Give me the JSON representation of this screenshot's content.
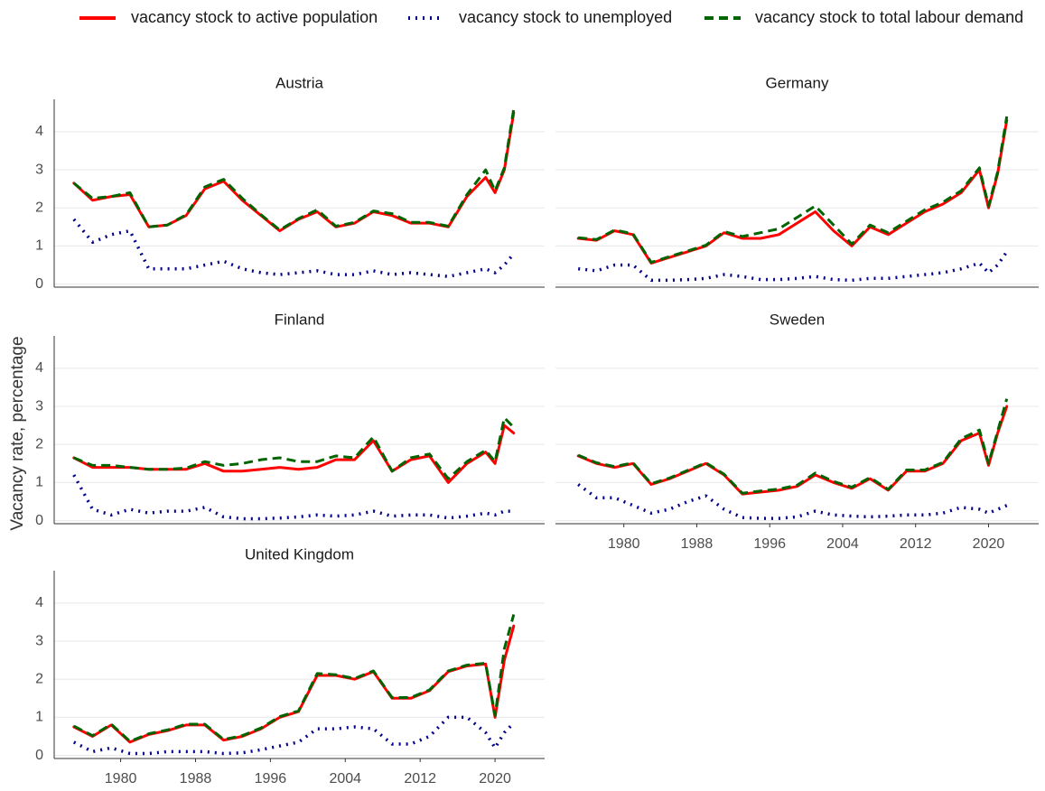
{
  "ylabel": "Vacancy rate, percentage",
  "chart_data": [
    {
      "type": "line",
      "title": "Austria",
      "col": 0,
      "row": 0,
      "y_axis": true,
      "x": [
        1975,
        1977,
        1979,
        1981,
        1983,
        1985,
        1987,
        1989,
        1991,
        1993,
        1995,
        1997,
        1999,
        2001,
        2003,
        2005,
        2007,
        2009,
        2011,
        2013,
        2015,
        2017,
        2019,
        2020,
        2021,
        2022
      ],
      "xlim": [
        1972.9,
        2025.3
      ],
      "ylim": [
        -0.08,
        4.85
      ],
      "yticks": [
        0,
        1,
        2,
        3,
        4
      ],
      "grid": true,
      "series": [
        {
          "name": "vacancy stock to active population",
          "color": "#ff0000",
          "dash": "solid",
          "values": [
            2.65,
            2.2,
            2.3,
            2.35,
            1.5,
            1.55,
            1.8,
            2.5,
            2.7,
            2.2,
            1.8,
            1.4,
            1.7,
            1.9,
            1.5,
            1.6,
            1.9,
            1.8,
            1.6,
            1.6,
            1.5,
            2.3,
            2.8,
            2.4,
            3.0,
            4.5
          ]
        },
        {
          "name": "vacancy stock to unemployed",
          "color": "#00008b",
          "dash": "dotted",
          "values": [
            1.7,
            1.1,
            1.3,
            1.4,
            0.4,
            0.4,
            0.4,
            0.5,
            0.6,
            0.4,
            0.3,
            0.25,
            0.3,
            0.35,
            0.25,
            0.25,
            0.35,
            0.25,
            0.3,
            0.25,
            0.2,
            0.3,
            0.4,
            0.3,
            0.5,
            0.8
          ]
        },
        {
          "name": "vacancy stock to total labour demand",
          "color": "#006400",
          "dash": "dashed",
          "values": [
            2.65,
            2.25,
            2.3,
            2.4,
            1.5,
            1.55,
            1.82,
            2.55,
            2.75,
            2.25,
            1.82,
            1.42,
            1.72,
            1.95,
            1.52,
            1.62,
            1.92,
            1.85,
            1.62,
            1.62,
            1.52,
            2.35,
            3.0,
            2.45,
            3.05,
            4.6
          ]
        }
      ]
    },
    {
      "type": "line",
      "title": "Germany",
      "col": 1,
      "row": 0,
      "y_axis": false,
      "x": [
        1975,
        1977,
        1979,
        1981,
        1983,
        1985,
        1987,
        1989,
        1991,
        1993,
        1995,
        1997,
        1999,
        2001,
        2003,
        2005,
        2007,
        2009,
        2011,
        2013,
        2015,
        2017,
        2019,
        2020,
        2021,
        2022
      ],
      "xlim": [
        1972.5,
        2025.5
      ],
      "ylim": [
        -0.08,
        4.85
      ],
      "yticks": [
        0,
        1,
        2,
        3,
        4
      ],
      "grid": true,
      "series": [
        {
          "color": "#ff0000",
          "dash": "solid",
          "values": [
            1.2,
            1.15,
            1.4,
            1.3,
            0.55,
            0.7,
            0.85,
            1.0,
            1.35,
            1.2,
            1.2,
            1.3,
            1.6,
            1.9,
            1.4,
            1.0,
            1.5,
            1.3,
            1.6,
            1.9,
            2.1,
            2.4,
            3.0,
            2.0,
            2.9,
            4.3
          ]
        },
        {
          "color": "#00008b",
          "dash": "dotted",
          "values": [
            0.4,
            0.35,
            0.5,
            0.5,
            0.1,
            0.1,
            0.12,
            0.15,
            0.25,
            0.2,
            0.12,
            0.12,
            0.15,
            0.2,
            0.12,
            0.1,
            0.15,
            0.15,
            0.2,
            0.25,
            0.3,
            0.4,
            0.55,
            0.3,
            0.5,
            0.85
          ]
        },
        {
          "color": "#006400",
          "dash": "dashed",
          "values": [
            1.22,
            1.17,
            1.42,
            1.32,
            0.57,
            0.72,
            0.87,
            1.02,
            1.38,
            1.25,
            1.35,
            1.45,
            1.75,
            2.05,
            1.55,
            1.05,
            1.55,
            1.35,
            1.65,
            1.95,
            2.15,
            2.45,
            3.05,
            2.05,
            2.95,
            4.4
          ]
        }
      ]
    },
    {
      "type": "line",
      "title": "Finland",
      "col": 0,
      "row": 1,
      "y_axis": true,
      "x": [
        1975,
        1977,
        1979,
        1981,
        1983,
        1985,
        1987,
        1989,
        1991,
        1993,
        1995,
        1997,
        1999,
        2001,
        2003,
        2005,
        2007,
        2009,
        2011,
        2013,
        2015,
        2017,
        2019,
        2020,
        2021,
        2022
      ],
      "xlim": [
        1972.9,
        2025.3
      ],
      "ylim": [
        -0.08,
        4.85
      ],
      "yticks": [
        0,
        1,
        2,
        3,
        4
      ],
      "grid": true,
      "series": [
        {
          "color": "#ff0000",
          "dash": "solid",
          "values": [
            1.65,
            1.4,
            1.4,
            1.4,
            1.35,
            1.35,
            1.35,
            1.5,
            1.3,
            1.3,
            1.35,
            1.4,
            1.35,
            1.4,
            1.6,
            1.6,
            2.1,
            1.3,
            1.6,
            1.7,
            1.0,
            1.5,
            1.8,
            1.5,
            2.5,
            2.3
          ]
        },
        {
          "color": "#00008b",
          "dash": "dotted",
          "values": [
            1.2,
            0.3,
            0.15,
            0.3,
            0.2,
            0.25,
            0.25,
            0.35,
            0.1,
            0.05,
            0.05,
            0.07,
            0.1,
            0.15,
            0.12,
            0.15,
            0.25,
            0.12,
            0.15,
            0.15,
            0.07,
            0.12,
            0.2,
            0.15,
            0.25,
            0.25
          ]
        },
        {
          "color": "#006400",
          "dash": "dashed",
          "values": [
            1.65,
            1.45,
            1.45,
            1.4,
            1.35,
            1.35,
            1.38,
            1.55,
            1.45,
            1.5,
            1.6,
            1.65,
            1.55,
            1.55,
            1.7,
            1.65,
            2.2,
            1.3,
            1.65,
            1.75,
            1.1,
            1.55,
            1.85,
            1.55,
            2.7,
            2.45
          ]
        }
      ]
    },
    {
      "type": "line",
      "title": "Sweden",
      "col": 1,
      "row": 1,
      "y_axis": false,
      "x": [
        1975,
        1977,
        1979,
        1981,
        1983,
        1985,
        1987,
        1989,
        1991,
        1993,
        1995,
        1997,
        1999,
        2001,
        2003,
        2005,
        2007,
        2009,
        2011,
        2013,
        2015,
        2017,
        2019,
        2020,
        2021,
        2022
      ],
      "xlim": [
        1972.5,
        2025.5
      ],
      "ylim": [
        -0.08,
        4.85
      ],
      "yticks": [
        0,
        1,
        2,
        3,
        4
      ],
      "xticks": [
        1980,
        1988,
        1996,
        2004,
        2012,
        2020
      ],
      "grid": true,
      "series": [
        {
          "color": "#ff0000",
          "dash": "solid",
          "values": [
            1.7,
            1.5,
            1.4,
            1.5,
            0.95,
            1.1,
            1.3,
            1.5,
            1.2,
            0.7,
            0.75,
            0.8,
            0.9,
            1.2,
            1.0,
            0.85,
            1.1,
            0.8,
            1.3,
            1.3,
            1.5,
            2.1,
            2.3,
            1.45,
            2.3,
            3.0
          ]
        },
        {
          "color": "#00008b",
          "dash": "dotted",
          "values": [
            0.95,
            0.6,
            0.6,
            0.4,
            0.2,
            0.3,
            0.5,
            0.65,
            0.3,
            0.08,
            0.06,
            0.06,
            0.1,
            0.25,
            0.15,
            0.12,
            0.1,
            0.12,
            0.15,
            0.15,
            0.2,
            0.35,
            0.3,
            0.2,
            0.3,
            0.4
          ]
        },
        {
          "color": "#006400",
          "dash": "dashed",
          "values": [
            1.72,
            1.52,
            1.42,
            1.52,
            0.97,
            1.12,
            1.32,
            1.52,
            1.22,
            0.72,
            0.78,
            0.83,
            0.93,
            1.25,
            1.03,
            0.88,
            1.13,
            0.82,
            1.33,
            1.33,
            1.53,
            2.15,
            2.38,
            1.5,
            2.35,
            3.2
          ]
        }
      ]
    },
    {
      "type": "line",
      "title": "United Kingdom",
      "col": 0,
      "row": 2,
      "y_axis": true,
      "x": [
        1975,
        1977,
        1979,
        1981,
        1983,
        1985,
        1987,
        1989,
        1991,
        1993,
        1995,
        1997,
        1999,
        2001,
        2003,
        2005,
        2007,
        2009,
        2011,
        2013,
        2015,
        2017,
        2019,
        2020,
        2021,
        2022
      ],
      "xlim": [
        1972.9,
        2025.3
      ],
      "ylim": [
        -0.08,
        4.85
      ],
      "yticks": [
        0,
        1,
        2,
        3,
        4
      ],
      "xticks": [
        1980,
        1988,
        1996,
        2004,
        2012,
        2020
      ],
      "grid": true,
      "series": [
        {
          "color": "#ff0000",
          "dash": "solid",
          "values": [
            0.75,
            0.5,
            0.8,
            0.35,
            0.55,
            0.65,
            0.8,
            0.8,
            0.4,
            0.5,
            0.7,
            1.0,
            1.15,
            2.1,
            2.1,
            2.0,
            2.2,
            1.5,
            1.5,
            1.7,
            2.2,
            2.35,
            2.4,
            1.0,
            2.5,
            3.4
          ]
        },
        {
          "color": "#00008b",
          "dash": "dotted",
          "values": [
            0.35,
            0.1,
            0.2,
            0.05,
            0.05,
            0.1,
            0.1,
            0.1,
            0.05,
            0.07,
            0.15,
            0.25,
            0.35,
            0.7,
            0.7,
            0.75,
            0.7,
            0.3,
            0.3,
            0.5,
            1.0,
            1.0,
            0.6,
            0.2,
            0.6,
            0.85
          ]
        },
        {
          "color": "#006400",
          "dash": "dashed",
          "values": [
            0.77,
            0.52,
            0.82,
            0.37,
            0.57,
            0.67,
            0.82,
            0.82,
            0.42,
            0.52,
            0.72,
            1.02,
            1.17,
            2.15,
            2.12,
            2.02,
            2.22,
            1.52,
            1.52,
            1.72,
            2.22,
            2.37,
            2.42,
            1.05,
            2.8,
            3.7
          ]
        }
      ]
    }
  ]
}
